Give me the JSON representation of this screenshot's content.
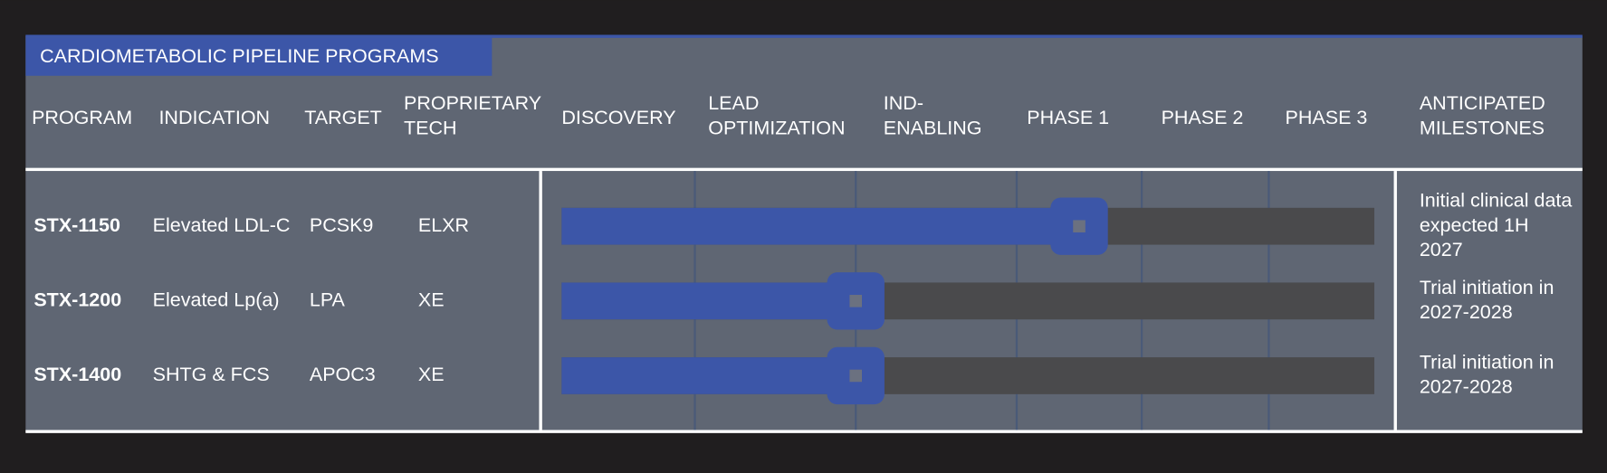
{
  "header": {
    "title": "CARDIOMETABOLIC PIPELINE PROGRAMS"
  },
  "columns": [
    [
      "PROGRAM"
    ],
    [
      "INDICATION"
    ],
    [
      "TARGET"
    ],
    [
      "PROPRIETARY",
      "TECH"
    ],
    [
      "DISCOVERY"
    ],
    [
      "LEAD",
      "OPTIMIZATION"
    ],
    [
      "IND-",
      "ENABLING"
    ],
    [
      "PHASE 1"
    ],
    [
      "PHASE 2"
    ],
    [
      "PHASE 3"
    ],
    [
      "ANTICIPATED",
      "MILESTONES"
    ]
  ],
  "rows": [
    {
      "program": "STX-1150",
      "indication": "Elevated LDL-C",
      "target": "PCSK9",
      "tech": "ELXR",
      "progress": 3.5,
      "milestone": [
        "Initial clinical data",
        "expected 1H",
        "2027"
      ]
    },
    {
      "program": "STX-1200",
      "indication": "Elevated Lp(a)",
      "target": "LPA",
      "tech": "XE",
      "progress": 2,
      "milestone": [
        "Trial initiation in",
        "2027-2028"
      ]
    },
    {
      "program": "STX-1400",
      "indication": "SHTG & FCS",
      "target": "APOC3",
      "tech": "XE",
      "progress": 2,
      "milestone": [
        "Trial initiation in",
        "2027-2028"
      ]
    }
  ]
}
